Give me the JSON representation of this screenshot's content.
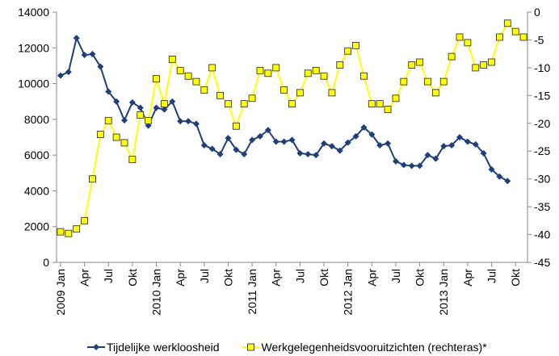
{
  "chart_data": {
    "type": "line",
    "categories": [
      "2009 Jan",
      null,
      null,
      "Apr",
      null,
      null,
      "Jul",
      null,
      null,
      "Okt",
      null,
      null,
      "2010 Jan",
      null,
      null,
      "Apr",
      null,
      null,
      "Jul",
      null,
      null,
      "Okt",
      null,
      null,
      "2011 Jan",
      null,
      null,
      "Apr",
      null,
      null,
      "Jul",
      null,
      null,
      "Okt",
      null,
      null,
      "2012 Jan",
      null,
      null,
      "Apr",
      null,
      null,
      "Jul",
      null,
      null,
      "Okt",
      null,
      null,
      "2013 Jan",
      null,
      null,
      "Apr",
      null,
      null,
      "Jul",
      null,
      null,
      "Okt",
      null
    ],
    "series": [
      {
        "name": "Tijdelijke werkloosheid",
        "color": "#1f3f7a",
        "marker": "diamond",
        "values": [
          10450,
          10650,
          12550,
          11600,
          11650,
          10950,
          9550,
          9000,
          7950,
          8950,
          8650,
          7650,
          8650,
          8550,
          9000,
          7900,
          7900,
          7750,
          6550,
          6350,
          6050,
          6950,
          6300,
          6050,
          6850,
          7050,
          7400,
          6750,
          6750,
          6850,
          6100,
          6050,
          6000,
          6650,
          6500,
          6250,
          6700,
          7050,
          7550,
          7150,
          6550,
          6650,
          5650,
          5450,
          5400,
          5400,
          6000,
          5800,
          6500,
          6550,
          7000,
          6750,
          6600,
          6100,
          5200,
          4800,
          4550,
          null,
          null
        ]
      },
      {
        "name": "Werkgelegenheidsvooruitzichten (rechteras)*",
        "color": "#ffff00",
        "marker": "square",
        "axis": "y2",
        "values": [
          -39.5,
          -39.8,
          -39,
          -37.5,
          -30,
          -22,
          -19.5,
          -22.5,
          -23.5,
          -26.5,
          -18.5,
          -19.5,
          -12,
          -16.5,
          -8.5,
          -10.5,
          -11.5,
          -12.5,
          -14,
          -10,
          -15,
          -16.5,
          -20.5,
          -16.5,
          -15.5,
          -10.5,
          -11,
          -10,
          -14,
          -16.5,
          -14.5,
          -11,
          -10.5,
          -11.5,
          -14.5,
          -9.5,
          -7,
          -6,
          -11.5,
          -16.5,
          -16.5,
          -17.5,
          -15.5,
          -12.5,
          -9.5,
          -9,
          -12.5,
          -14.5,
          -12.5,
          -8,
          -4.5,
          -5.5,
          -10,
          -9.5,
          -9,
          -4.5,
          -2,
          -3.5,
          -4.5
        ]
      }
    ],
    "ylim": [
      0,
      14000
    ],
    "yticks": [
      0,
      2000,
      4000,
      6000,
      8000,
      10000,
      12000,
      14000
    ],
    "y2lim": [
      -45,
      0
    ],
    "y2ticks": [
      -45,
      -40,
      -35,
      -30,
      -25,
      -20,
      -15,
      -10,
      -5,
      0
    ],
    "grid": false,
    "legend": "bottom"
  }
}
